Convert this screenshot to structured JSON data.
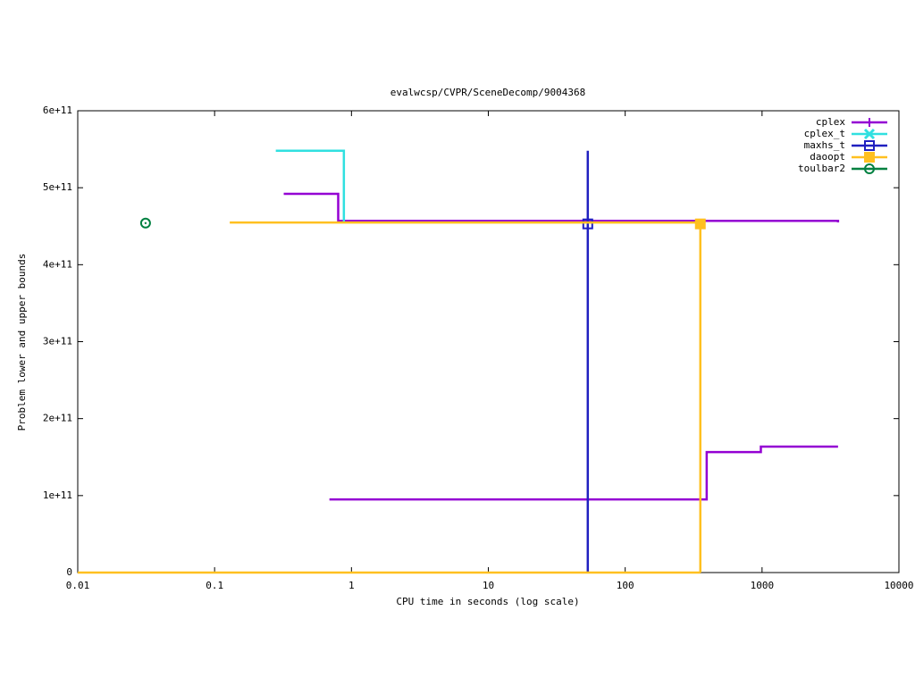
{
  "chart_data": {
    "type": "step",
    "title": "evalwcsp/CVPR/SceneDecomp/9004368",
    "x_label": "CPU time in seconds (log scale)",
    "y_label": "Problem lower and upper bounds",
    "x_log": true,
    "legend": "top-right",
    "xlim": [
      0.01,
      10000
    ],
    "xticks": [
      0.01,
      0.1,
      1,
      10,
      100,
      1000,
      10000
    ],
    "ylim": [
      0,
      600000000000
    ],
    "yticks": [
      0,
      {
        "value": 100000000000,
        "label": "1e+11"
      },
      {
        "value": 200000000000,
        "label": "2e+11"
      },
      {
        "value": 300000000000,
        "label": "3e+11"
      },
      {
        "value": 400000000000,
        "label": "4e+11"
      },
      {
        "value": 500000000000,
        "label": "5e+11"
      },
      {
        "value": 600000000000,
        "label": "6e+11"
      }
    ],
    "series": [
      {
        "name": "cplex",
        "color": "#9400d3",
        "marker": "plus",
        "x": [
          0.32,
          0.8,
          3590,
          3590,
          null,
          0.69,
          394,
          980,
          3590
        ],
        "values": [
          492000000000,
          457000000000,
          457000000000,
          455000000000,
          null,
          95000000000,
          156600000000,
          163600000000,
          163600000000
        ]
      },
      {
        "name": "cplex_t",
        "color": "#30e0e0",
        "marker": "cross",
        "x": [
          0.28,
          0.88
        ],
        "values": [
          548000000000,
          454000000000
        ]
      },
      {
        "name": "maxhs_t",
        "color": "#2020c0",
        "marker": "square",
        "x": [
          53.3,
          53.3
        ],
        "values": [
          0,
          548000000000
        ],
        "marker_x": [
          53.3
        ],
        "marker_y": [
          453000000000
        ]
      },
      {
        "name": "daoopt",
        "color": "#ffc020",
        "marker": "filled-square",
        "x": [
          0.129,
          354,
          null,
          0.01,
          354
        ],
        "values": [
          454800000000,
          0,
          null,
          0,
          0
        ],
        "marker_x": [
          354
        ],
        "marker_y": [
          453000000000
        ]
      },
      {
        "name": "toulbar2",
        "color": "#008040",
        "marker": "circle-dot",
        "x": [],
        "values": [],
        "marker_x": [
          0.0313
        ],
        "marker_y": [
          454000000000
        ]
      }
    ]
  }
}
